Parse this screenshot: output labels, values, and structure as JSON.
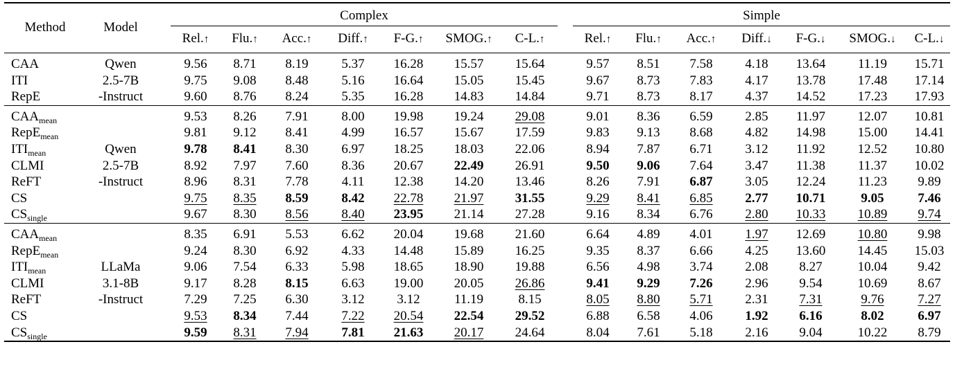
{
  "header": {
    "method": "Method",
    "model": "Model",
    "groups": [
      "Complex",
      "Simple"
    ],
    "complex_metrics": [
      {
        "name": "Rel.",
        "arrow": "↑"
      },
      {
        "name": "Flu.",
        "arrow": "↑"
      },
      {
        "name": "Acc.",
        "arrow": "↑"
      },
      {
        "name": "Diff.",
        "arrow": "↑"
      },
      {
        "name": "F-G.",
        "arrow": "↑"
      },
      {
        "name": "SMOG.",
        "arrow": "↑"
      },
      {
        "name": "C-L.",
        "arrow": "↑"
      }
    ],
    "simple_metrics": [
      {
        "name": "Rel.",
        "arrow": "↑"
      },
      {
        "name": "Flu.",
        "arrow": "↑"
      },
      {
        "name": "Acc.",
        "arrow": "↑"
      },
      {
        "name": "Diff.",
        "arrow": "↓"
      },
      {
        "name": "F-G.",
        "arrow": "↓"
      },
      {
        "name": "SMOG.",
        "arrow": "↓"
      },
      {
        "name": "C-L.",
        "arrow": "↓"
      }
    ]
  },
  "sections": [
    {
      "model_lines": [
        "Qwen",
        "2.5-7B",
        "-Instruct"
      ],
      "rows": [
        {
          "method": "CAA",
          "sub": "",
          "values": [
            "9.56",
            "8.71",
            "8.19",
            "5.37",
            "16.28",
            "15.57",
            "15.64",
            "9.57",
            "8.51",
            "7.58",
            "4.18",
            "13.64",
            "11.19",
            "15.71"
          ],
          "styles": [
            "",
            "",
            "",
            "",
            "",
            "",
            "",
            "",
            "",
            "",
            "",
            "",
            "",
            ""
          ]
        },
        {
          "method": "ITI",
          "sub": "",
          "values": [
            "9.75",
            "9.08",
            "8.48",
            "5.16",
            "16.64",
            "15.05",
            "15.45",
            "9.67",
            "8.73",
            "7.83",
            "4.17",
            "13.78",
            "17.48",
            "17.14"
          ],
          "styles": [
            "",
            "",
            "",
            "",
            "",
            "",
            "",
            "",
            "",
            "",
            "",
            "",
            "",
            ""
          ]
        },
        {
          "method": "RepE",
          "sub": "",
          "values": [
            "9.60",
            "8.76",
            "8.24",
            "5.35",
            "16.28",
            "14.83",
            "14.84",
            "9.71",
            "8.73",
            "8.17",
            "4.37",
            "14.52",
            "17.23",
            "17.93"
          ],
          "styles": [
            "",
            "",
            "",
            "",
            "",
            "",
            "",
            "",
            "",
            "",
            "",
            "",
            "",
            ""
          ]
        }
      ]
    },
    {
      "model_lines": [
        "Qwen",
        "2.5-7B",
        "-Instruct"
      ],
      "rows": [
        {
          "method": "CAA",
          "sub": "mean",
          "values": [
            "9.53",
            "8.26",
            "7.91",
            "8.00",
            "19.98",
            "19.24",
            "29.08",
            "9.01",
            "8.36",
            "6.59",
            "2.85",
            "11.97",
            "12.07",
            "10.81"
          ],
          "styles": [
            "",
            "",
            "",
            "",
            "",
            "",
            "u",
            "",
            "",
            "",
            "",
            "",
            "",
            ""
          ]
        },
        {
          "method": "RepE",
          "sub": "mean",
          "values": [
            "9.81",
            "9.12",
            "8.41",
            "4.99",
            "16.57",
            "15.67",
            "17.59",
            "9.83",
            "9.13",
            "8.68",
            "4.82",
            "14.98",
            "15.00",
            "14.41"
          ],
          "styles": [
            "",
            "",
            "",
            "",
            "",
            "",
            "",
            "",
            "",
            "",
            "",
            "",
            "",
            ""
          ]
        },
        {
          "method": "ITI",
          "sub": "mean",
          "values": [
            "9.78",
            "8.41",
            "8.30",
            "6.97",
            "18.25",
            "18.03",
            "22.06",
            "8.94",
            "7.87",
            "6.71",
            "3.12",
            "11.92",
            "12.52",
            "10.80"
          ],
          "styles": [
            "b",
            "b",
            "",
            "",
            "",
            "",
            "",
            "",
            "",
            "",
            "",
            "",
            "",
            ""
          ]
        },
        {
          "method": "CLMI",
          "sub": "",
          "values": [
            "8.92",
            "7.97",
            "7.60",
            "8.36",
            "20.67",
            "22.49",
            "26.91",
            "9.50",
            "9.06",
            "7.64",
            "3.47",
            "11.38",
            "11.37",
            "10.02"
          ],
          "styles": [
            "",
            "",
            "",
            "",
            "",
            "b",
            "",
            "b",
            "b",
            "",
            "",
            "",
            "",
            ""
          ]
        },
        {
          "method": "ReFT",
          "sub": "",
          "values": [
            "8.96",
            "8.31",
            "7.78",
            "4.11",
            "12.38",
            "14.20",
            "13.46",
            "8.26",
            "7.91",
            "6.87",
            "3.05",
            "12.24",
            "11.23",
            "9.89"
          ],
          "styles": [
            "",
            "",
            "",
            "",
            "",
            "",
            "",
            "",
            "",
            "b",
            "",
            "",
            "",
            ""
          ]
        },
        {
          "method": "CS",
          "sub": "",
          "values": [
            "9.75",
            "8.35",
            "8.59",
            "8.42",
            "22.78",
            "21.97",
            "31.55",
            "9.29",
            "8.41",
            "6.85",
            "2.77",
            "10.71",
            "9.05",
            "7.46"
          ],
          "styles": [
            "u",
            "u",
            "b",
            "b",
            "u",
            "u",
            "b",
            "u",
            "u",
            "u",
            "b",
            "b",
            "b",
            "b"
          ]
        },
        {
          "method": "CS",
          "sub": "single",
          "values": [
            "9.67",
            "8.30",
            "8.56",
            "8.40",
            "23.95",
            "21.14",
            "27.28",
            "9.16",
            "8.34",
            "6.76",
            "2.80",
            "10.33",
            "10.89",
            "9.74"
          ],
          "styles": [
            "",
            "",
            "u",
            "u",
            "b",
            "",
            "",
            "",
            "",
            "",
            "u",
            "u",
            "u",
            "u"
          ]
        }
      ]
    },
    {
      "model_lines": [
        "LLaMa",
        "3.1-8B",
        "-Instruct"
      ],
      "rows": [
        {
          "method": "CAA",
          "sub": "mean",
          "values": [
            "8.35",
            "6.91",
            "5.53",
            "6.62",
            "20.04",
            "19.68",
            "21.60",
            "6.64",
            "4.89",
            "4.01",
            "1.97",
            "12.69",
            "10.80",
            "9.98"
          ],
          "styles": [
            "",
            "",
            "",
            "",
            "",
            "",
            "",
            "",
            "",
            "",
            "u",
            "",
            "u",
            ""
          ]
        },
        {
          "method": "RepE",
          "sub": "mean",
          "values": [
            "9.24",
            "8.30",
            "6.92",
            "4.33",
            "14.48",
            "15.89",
            "16.25",
            "9.35",
            "8.37",
            "6.66",
            "4.25",
            "13.60",
            "14.45",
            "15.03"
          ],
          "styles": [
            "",
            "",
            "",
            "",
            "",
            "",
            "",
            "",
            "",
            "",
            "",
            "",
            "",
            ""
          ]
        },
        {
          "method": "ITI",
          "sub": "mean",
          "values": [
            "9.06",
            "7.54",
            "6.33",
            "5.98",
            "18.65",
            "18.90",
            "19.88",
            "6.56",
            "4.98",
            "3.74",
            "2.08",
            "8.27",
            "10.04",
            "9.42"
          ],
          "styles": [
            "",
            "",
            "",
            "",
            "",
            "",
            "",
            "",
            "",
            "",
            "",
            "",
            "",
            ""
          ]
        },
        {
          "method": "CLMI",
          "sub": "",
          "values": [
            "9.17",
            "8.28",
            "8.15",
            "6.63",
            "19.00",
            "20.05",
            "26.86",
            "9.41",
            "9.29",
            "7.26",
            "2.96",
            "9.54",
            "10.69",
            "8.67"
          ],
          "styles": [
            "",
            "",
            "b",
            "",
            "",
            "",
            "u",
            "b",
            "b",
            "b",
            "",
            "",
            "",
            ""
          ]
        },
        {
          "method": "ReFT",
          "sub": "",
          "values": [
            "7.29",
            "7.25",
            "6.30",
            "3.12",
            "3.12",
            "11.19",
            "8.15",
            "8.05",
            "8.80",
            "5.71",
            "2.31",
            "7.31",
            "9.76",
            "7.27"
          ],
          "styles": [
            "",
            "",
            "",
            "",
            "",
            "",
            "",
            "u",
            "u",
            "u",
            "",
            "u",
            "u",
            "u"
          ]
        },
        {
          "method": "CS",
          "sub": "",
          "values": [
            "9.53",
            "8.34",
            "7.44",
            "7.22",
            "20.54",
            "22.54",
            "29.52",
            "6.88",
            "6.58",
            "4.06",
            "1.92",
            "6.16",
            "8.02",
            "6.97"
          ],
          "styles": [
            "u",
            "b",
            "",
            "u",
            "u",
            "b",
            "b",
            "",
            "",
            "",
            "b",
            "b",
            "b",
            "b"
          ]
        },
        {
          "method": "CS",
          "sub": "single",
          "values": [
            "9.59",
            "8.31",
            "7.94",
            "7.81",
            "21.63",
            "20.17",
            "24.64",
            "8.04",
            "7.61",
            "5.18",
            "2.16",
            "9.04",
            "10.22",
            "8.79"
          ],
          "styles": [
            "b",
            "u",
            "u",
            "b",
            "b",
            "u",
            "",
            "",
            "",
            "",
            "",
            "",
            "",
            ""
          ]
        }
      ]
    }
  ]
}
